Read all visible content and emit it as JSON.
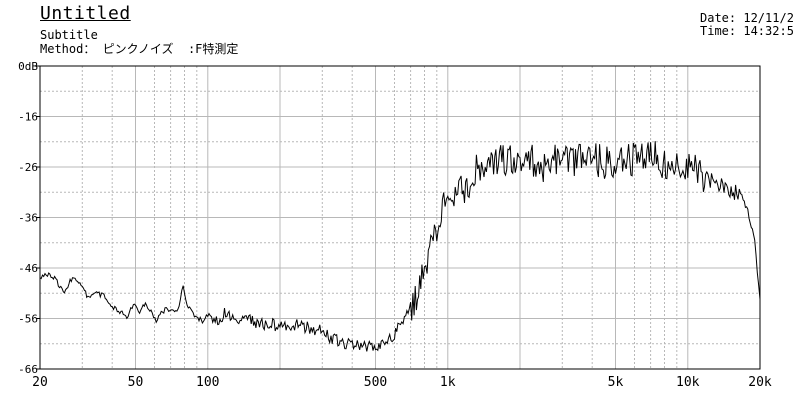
{
  "header": {
    "title": "Untitled",
    "subtitle": "Subtitle",
    "method_label": "Method：",
    "method_value": " ピンクノイズ  :F特測定",
    "date": "Date: 12/11/2",
    "time": "Time: 14:32:5"
  },
  "chart_data": {
    "type": "line",
    "x_scale": "log",
    "x_range": [
      20,
      20000
    ],
    "y_range": [
      -60,
      0
    ],
    "grid": true,
    "y_ticks": [
      "0dB",
      "-16",
      "-26",
      "-36",
      "-46",
      "-56",
      "-66"
    ],
    "x_ticks": [
      {
        "label": "20",
        "value": 20
      },
      {
        "label": "50",
        "value": 50
      },
      {
        "label": "100",
        "value": 100
      },
      {
        "label": "500",
        "value": 500
      },
      {
        "label": "1k",
        "value": 1000
      },
      {
        "label": "5k",
        "value": 5000
      },
      {
        "label": "10k",
        "value": 10000
      },
      {
        "label": "20k",
        "value": 20000
      }
    ],
    "series": [
      {
        "color": "#000000",
        "points": [
          [
            20,
            -42.0
          ],
          [
            22,
            -41.2
          ],
          [
            23,
            -42.0
          ],
          [
            25,
            -44.8
          ],
          [
            27,
            -42.4
          ],
          [
            28,
            -42.0
          ],
          [
            30,
            -44.0
          ],
          [
            32,
            -46.0
          ],
          [
            34,
            -45.0
          ],
          [
            37,
            -45.4
          ],
          [
            40,
            -47.6
          ],
          [
            43,
            -48.6
          ],
          [
            46,
            -49.6
          ],
          [
            49,
            -47.4
          ],
          [
            52,
            -48.6
          ],
          [
            55,
            -46.8
          ],
          [
            58,
            -48.8
          ],
          [
            61,
            -50.8
          ],
          [
            64,
            -48.6
          ],
          [
            68,
            -48.2
          ],
          [
            72,
            -48.8
          ],
          [
            76,
            -47.8
          ],
          [
            79,
            -43.2
          ],
          [
            82,
            -47.4
          ],
          [
            86,
            -48.8
          ],
          [
            90,
            -49.8
          ],
          [
            95,
            -50.4
          ],
          [
            100,
            -49.2
          ],
          [
            110,
            -50.4
          ],
          [
            120,
            -48.6
          ],
          [
            130,
            -50.6
          ],
          [
            150,
            -50.4
          ],
          [
            170,
            -51.0
          ],
          [
            200,
            -51.4
          ],
          [
            230,
            -51.2
          ],
          [
            260,
            -51.8
          ],
          [
            300,
            -52.4
          ],
          [
            330,
            -54.0
          ],
          [
            360,
            -54.8
          ],
          [
            390,
            -55.0
          ],
          [
            420,
            -55.0
          ],
          [
            460,
            -55.6
          ],
          [
            500,
            -55.2
          ],
          [
            540,
            -55.0
          ],
          [
            580,
            -54.0
          ],
          [
            620,
            -52.0
          ],
          [
            660,
            -50.2
          ],
          [
            700,
            -48.0
          ],
          [
            740,
            -45.4
          ],
          [
            780,
            -42.0
          ],
          [
            820,
            -38.6
          ],
          [
            860,
            -35.0
          ],
          [
            900,
            -32.0
          ],
          [
            950,
            -27.6
          ],
          [
            1000,
            -25.0
          ],
          [
            1100,
            -24.2
          ],
          [
            1200,
            -25.6
          ],
          [
            1300,
            -20.4
          ],
          [
            1400,
            -20.0
          ],
          [
            1500,
            -19.2
          ],
          [
            1700,
            -19.0
          ],
          [
            2000,
            -17.8
          ],
          [
            2500,
            -19.8
          ],
          [
            3000,
            -18.4
          ],
          [
            4000,
            -18.4
          ],
          [
            5000,
            -19.6
          ],
          [
            6000,
            -18.2
          ],
          [
            7000,
            -17.6
          ],
          [
            8000,
            -19.0
          ],
          [
            9000,
            -18.6
          ],
          [
            10000,
            -19.8
          ],
          [
            11000,
            -21.2
          ],
          [
            12000,
            -22.4
          ],
          [
            13000,
            -23.2
          ],
          [
            14000,
            -23.6
          ],
          [
            15000,
            -24.8
          ],
          [
            16000,
            -25.0
          ],
          [
            17000,
            -26.4
          ],
          [
            18000,
            -29.6
          ],
          [
            19000,
            -35.0
          ],
          [
            20000,
            -46.2
          ]
        ]
      }
    ]
  }
}
